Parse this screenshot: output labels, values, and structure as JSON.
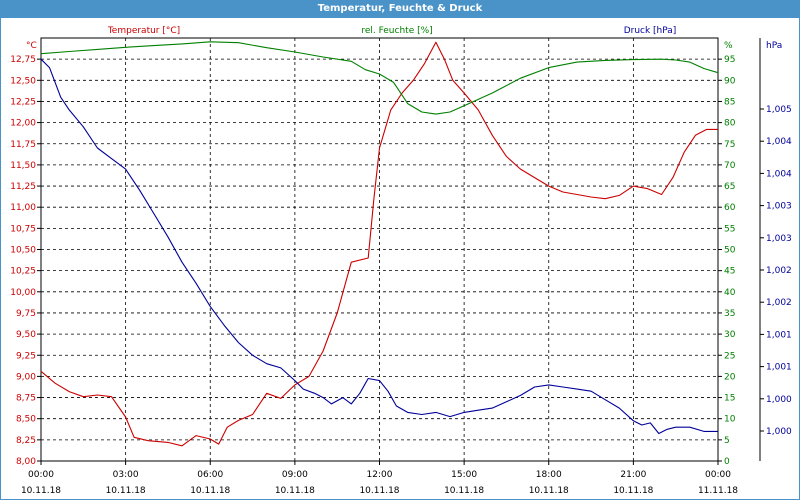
{
  "window": {
    "title": "Temperatur, Feuchte & Druck"
  },
  "chart_data": {
    "type": "line",
    "title": "Temperatur, Feuchte & Druck",
    "x_ticks": [
      {
        "time": "00:00",
        "date": "10.11.18"
      },
      {
        "time": "03:00",
        "date": "10.11.18"
      },
      {
        "time": "06:00",
        "date": "10.11.18"
      },
      {
        "time": "09:00",
        "date": "10.11.18"
      },
      {
        "time": "12:00",
        "date": "10.11.18"
      },
      {
        "time": "15:00",
        "date": "10.11.18"
      },
      {
        "time": "18:00",
        "date": "10.11.18"
      },
      {
        "time": "21:00",
        "date": "10.11.18"
      },
      {
        "time": "00:00",
        "date": "11.11.18"
      }
    ],
    "axes": {
      "temperature": {
        "title": "Temperatur [°C]",
        "unit": "°C",
        "color": "#cc0000",
        "range": [
          8.0,
          13.0
        ],
        "ticks": [
          "8,00",
          "8,25",
          "8,50",
          "8,75",
          "9,00",
          "9,25",
          "9,50",
          "9,75",
          "10,00",
          "10,25",
          "10,50",
          "10,75",
          "11,00",
          "11,25",
          "11,50",
          "11,75",
          "12,00",
          "12,25",
          "12,50",
          "12,75"
        ]
      },
      "humidity": {
        "title": "rel. Feuchte [%]",
        "unit": "%",
        "color": "#008000",
        "range": [
          0,
          100
        ],
        "ticks": [
          "0",
          "5",
          "10",
          "15",
          "20",
          "25",
          "30",
          "35",
          "40",
          "45",
          "50",
          "55",
          "60",
          "65",
          "70",
          "75",
          "80",
          "85",
          "90",
          "95"
        ]
      },
      "pressure": {
        "title": "Druck [hPa]",
        "unit": "hPa",
        "color": "#000099",
        "ticks": [
          "1,000",
          "1,000",
          "1,001",
          "1,001",
          "1,002",
          "1,002",
          "1,003",
          "1,003",
          "1,004",
          "1,004",
          "1,005"
        ]
      }
    },
    "series": [
      {
        "name": "Temperatur [°C]",
        "axis": "temperature",
        "color": "#cc0000",
        "points": [
          [
            0,
            9.06
          ],
          [
            0.5,
            8.92
          ],
          [
            1.0,
            8.82
          ],
          [
            1.5,
            8.76
          ],
          [
            2.0,
            8.78
          ],
          [
            2.5,
            8.76
          ],
          [
            3.0,
            8.52
          ],
          [
            3.3,
            8.28
          ],
          [
            3.8,
            8.24
          ],
          [
            4.5,
            8.22
          ],
          [
            5.0,
            8.18
          ],
          [
            5.5,
            8.3
          ],
          [
            6.0,
            8.26
          ],
          [
            6.3,
            8.2
          ],
          [
            6.6,
            8.4
          ],
          [
            7.0,
            8.48
          ],
          [
            7.5,
            8.55
          ],
          [
            8.0,
            8.8
          ],
          [
            8.5,
            8.74
          ],
          [
            9.0,
            8.9
          ],
          [
            9.5,
            9.0
          ],
          [
            10.0,
            9.3
          ],
          [
            10.5,
            9.75
          ],
          [
            11.0,
            10.35
          ],
          [
            11.6,
            10.4
          ],
          [
            11.8,
            11.1
          ],
          [
            12.0,
            11.7
          ],
          [
            12.4,
            12.15
          ],
          [
            12.8,
            12.35
          ],
          [
            13.2,
            12.5
          ],
          [
            13.6,
            12.7
          ],
          [
            14.0,
            12.95
          ],
          [
            14.3,
            12.75
          ],
          [
            14.6,
            12.5
          ],
          [
            15.0,
            12.35
          ],
          [
            15.5,
            12.15
          ],
          [
            16.0,
            11.85
          ],
          [
            16.5,
            11.6
          ],
          [
            17.0,
            11.45
          ],
          [
            17.5,
            11.35
          ],
          [
            18.0,
            11.25
          ],
          [
            18.5,
            11.18
          ],
          [
            19.0,
            11.15
          ],
          [
            19.5,
            11.12
          ],
          [
            20.0,
            11.1
          ],
          [
            20.5,
            11.14
          ],
          [
            21.0,
            11.25
          ],
          [
            21.5,
            11.22
          ],
          [
            22.0,
            11.15
          ],
          [
            22.4,
            11.35
          ],
          [
            22.8,
            11.65
          ],
          [
            23.2,
            11.85
          ],
          [
            23.6,
            11.92
          ],
          [
            24.0,
            11.92
          ]
        ]
      },
      {
        "name": "rel. Feuchte [%]",
        "axis": "humidity",
        "color": "#008000",
        "points": [
          [
            0,
            96.3
          ],
          [
            1,
            96.8
          ],
          [
            2,
            97.3
          ],
          [
            3,
            97.8
          ],
          [
            4,
            98.2
          ],
          [
            5,
            98.6
          ],
          [
            6,
            99.1
          ],
          [
            7,
            98.9
          ],
          [
            8,
            97.7
          ],
          [
            9,
            96.7
          ],
          [
            10,
            95.5
          ],
          [
            11,
            94.5
          ],
          [
            11.5,
            92.5
          ],
          [
            12,
            91.5
          ],
          [
            12.5,
            89.5
          ],
          [
            13,
            84.5
          ],
          [
            13.5,
            82.5
          ],
          [
            14,
            82.0
          ],
          [
            14.5,
            82.5
          ],
          [
            15,
            84.0
          ],
          [
            16,
            87.0
          ],
          [
            17,
            90.5
          ],
          [
            18,
            93.0
          ],
          [
            19,
            94.3
          ],
          [
            20,
            94.7
          ],
          [
            21,
            94.9
          ],
          [
            22,
            95.0
          ],
          [
            22.5,
            94.8
          ],
          [
            23,
            94.3
          ],
          [
            23.5,
            92.8
          ],
          [
            24,
            91.8
          ]
        ]
      },
      {
        "name": "Druck [hPa]",
        "axis": "pressure",
        "color": "#000099",
        "points": [
          [
            0,
            95.0
          ],
          [
            0.3,
            93.0
          ],
          [
            0.7,
            86.0
          ],
          [
            1,
            83.0
          ],
          [
            1.5,
            79.0
          ],
          [
            2,
            74.0
          ],
          [
            2.5,
            71.5
          ],
          [
            3,
            69.0
          ],
          [
            3.5,
            64.0
          ],
          [
            4,
            58.5
          ],
          [
            4.5,
            53.0
          ],
          [
            5,
            47.0
          ],
          [
            5.5,
            42.0
          ],
          [
            6,
            36.5
          ],
          [
            6.5,
            32.0
          ],
          [
            7,
            28.0
          ],
          [
            7.5,
            25.0
          ],
          [
            8,
            23.0
          ],
          [
            8.5,
            22.0
          ],
          [
            9,
            19.0
          ],
          [
            9.3,
            17.0
          ],
          [
            9.7,
            16.0
          ],
          [
            10,
            15.0
          ],
          [
            10.3,
            13.5
          ],
          [
            10.7,
            15.0
          ],
          [
            11,
            13.5
          ],
          [
            11.3,
            16.0
          ],
          [
            11.6,
            19.5
          ],
          [
            12,
            19.0
          ],
          [
            12.3,
            16.5
          ],
          [
            12.6,
            13.0
          ],
          [
            13,
            11.5
          ],
          [
            13.5,
            11.0
          ],
          [
            14,
            11.5
          ],
          [
            14.5,
            10.5
          ],
          [
            15,
            11.5
          ],
          [
            15.5,
            12.0
          ],
          [
            16,
            12.5
          ],
          [
            16.5,
            14.0
          ],
          [
            17,
            15.5
          ],
          [
            17.5,
            17.5
          ],
          [
            18,
            18.0
          ],
          [
            18.5,
            17.5
          ],
          [
            19,
            17.0
          ],
          [
            19.5,
            16.5
          ],
          [
            20,
            14.5
          ],
          [
            20.5,
            12.5
          ],
          [
            21,
            9.5
          ],
          [
            21.3,
            8.5
          ],
          [
            21.6,
            9.0
          ],
          [
            21.9,
            6.5
          ],
          [
            22.2,
            7.5
          ],
          [
            22.5,
            8.0
          ],
          [
            23,
            8.0
          ],
          [
            23.5,
            7.0
          ],
          [
            24,
            7.0
          ]
        ]
      }
    ],
    "grid": true,
    "legend": "top"
  }
}
